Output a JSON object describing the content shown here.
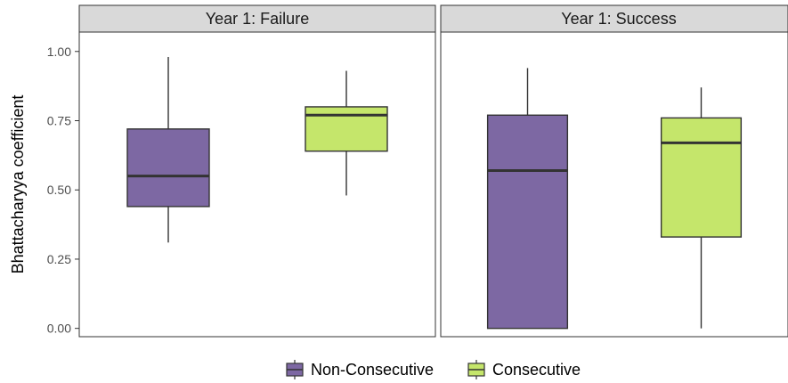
{
  "chart_data": {
    "type": "box",
    "ylabel": "Bhattacharyya coefficient",
    "ylim": [
      -0.03,
      1.07
    ],
    "yticks": [
      "0.00",
      "0.25",
      "0.50",
      "0.75",
      "1.00"
    ],
    "ytick_values": [
      0,
      0.25,
      0.5,
      0.75,
      1.0
    ],
    "grid": false,
    "legend_position": "bottom",
    "series": [
      {
        "name": "Non-Consecutive",
        "color": "#7d68a3"
      },
      {
        "name": "Consecutive",
        "color": "#c5e66b"
      }
    ],
    "panels": [
      {
        "title": "Year 1: Failure",
        "boxes": [
          {
            "series": "Non-Consecutive",
            "min": 0.31,
            "q1": 0.44,
            "median": 0.55,
            "q3": 0.72,
            "max": 0.98
          },
          {
            "series": "Consecutive",
            "min": 0.48,
            "q1": 0.64,
            "median": 0.77,
            "q3": 0.8,
            "max": 0.93
          }
        ]
      },
      {
        "title": "Year 1: Success",
        "boxes": [
          {
            "series": "Non-Consecutive",
            "min": 0.0,
            "q1": 0.0,
            "median": 0.57,
            "q3": 0.77,
            "max": 0.94
          },
          {
            "series": "Consecutive",
            "min": 0.0,
            "q1": 0.33,
            "median": 0.67,
            "q3": 0.76,
            "max": 0.87
          }
        ]
      }
    ]
  }
}
